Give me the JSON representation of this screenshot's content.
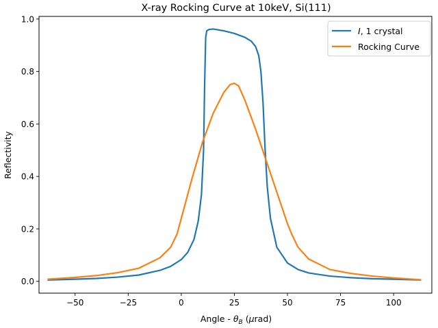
{
  "chart_data": {
    "type": "line",
    "title": "X-ray Rocking Curve at 10keV, Si(111)",
    "xlabel": "Angle - θ_B (μrad)",
    "ylabel": "Reflectivity",
    "xlim": [
      -67,
      118
    ],
    "ylim": [
      -0.045,
      1.01
    ],
    "xticks": [
      -50,
      -25,
      0,
      25,
      50,
      75,
      100
    ],
    "xtick_labels": [
      "−50",
      "−25",
      "0",
      "25",
      "50",
      "75",
      "100"
    ],
    "yticks": [
      0.0,
      0.2,
      0.4,
      0.6,
      0.8,
      1.0
    ],
    "ytick_labels": [
      "0.0",
      "0.2",
      "0.4",
      "0.6",
      "0.8",
      "1.0"
    ],
    "grid": false,
    "legend_position": "upper right",
    "series": [
      {
        "name": "I, 1 crystal",
        "color": "#1f77b4",
        "x": [
          -63,
          -50,
          -40,
          -30,
          -20,
          -10,
          -5,
          0,
          3,
          6,
          8,
          9.5,
          10.5,
          11,
          11.5,
          12,
          13,
          15,
          20,
          25,
          30,
          33,
          35,
          36.5,
          37.5,
          38.5,
          39.5,
          40.5,
          42,
          45,
          50,
          55,
          60,
          70,
          80,
          90,
          100,
          113
        ],
        "y": [
          0.005,
          0.008,
          0.011,
          0.016,
          0.024,
          0.042,
          0.057,
          0.083,
          0.11,
          0.16,
          0.23,
          0.33,
          0.5,
          0.75,
          0.93,
          0.955,
          0.96,
          0.962,
          0.955,
          0.945,
          0.93,
          0.915,
          0.895,
          0.86,
          0.8,
          0.68,
          0.5,
          0.36,
          0.24,
          0.13,
          0.07,
          0.045,
          0.032,
          0.02,
          0.014,
          0.01,
          0.008,
          0.005
        ]
      },
      {
        "name": "Rocking Curve",
        "color": "#ff7f0e",
        "x": [
          -63,
          -50,
          -40,
          -30,
          -20,
          -10,
          -5,
          -2,
          0,
          5,
          10,
          15,
          20,
          23,
          25,
          27,
          30,
          35,
          40,
          45,
          50,
          52,
          55,
          60,
          70,
          80,
          90,
          100,
          113
        ],
        "y": [
          0.008,
          0.015,
          0.022,
          0.033,
          0.05,
          0.09,
          0.13,
          0.18,
          0.24,
          0.39,
          0.53,
          0.64,
          0.72,
          0.75,
          0.755,
          0.745,
          0.69,
          0.58,
          0.46,
          0.34,
          0.22,
          0.18,
          0.13,
          0.085,
          0.045,
          0.03,
          0.02,
          0.013,
          0.006
        ]
      }
    ]
  }
}
